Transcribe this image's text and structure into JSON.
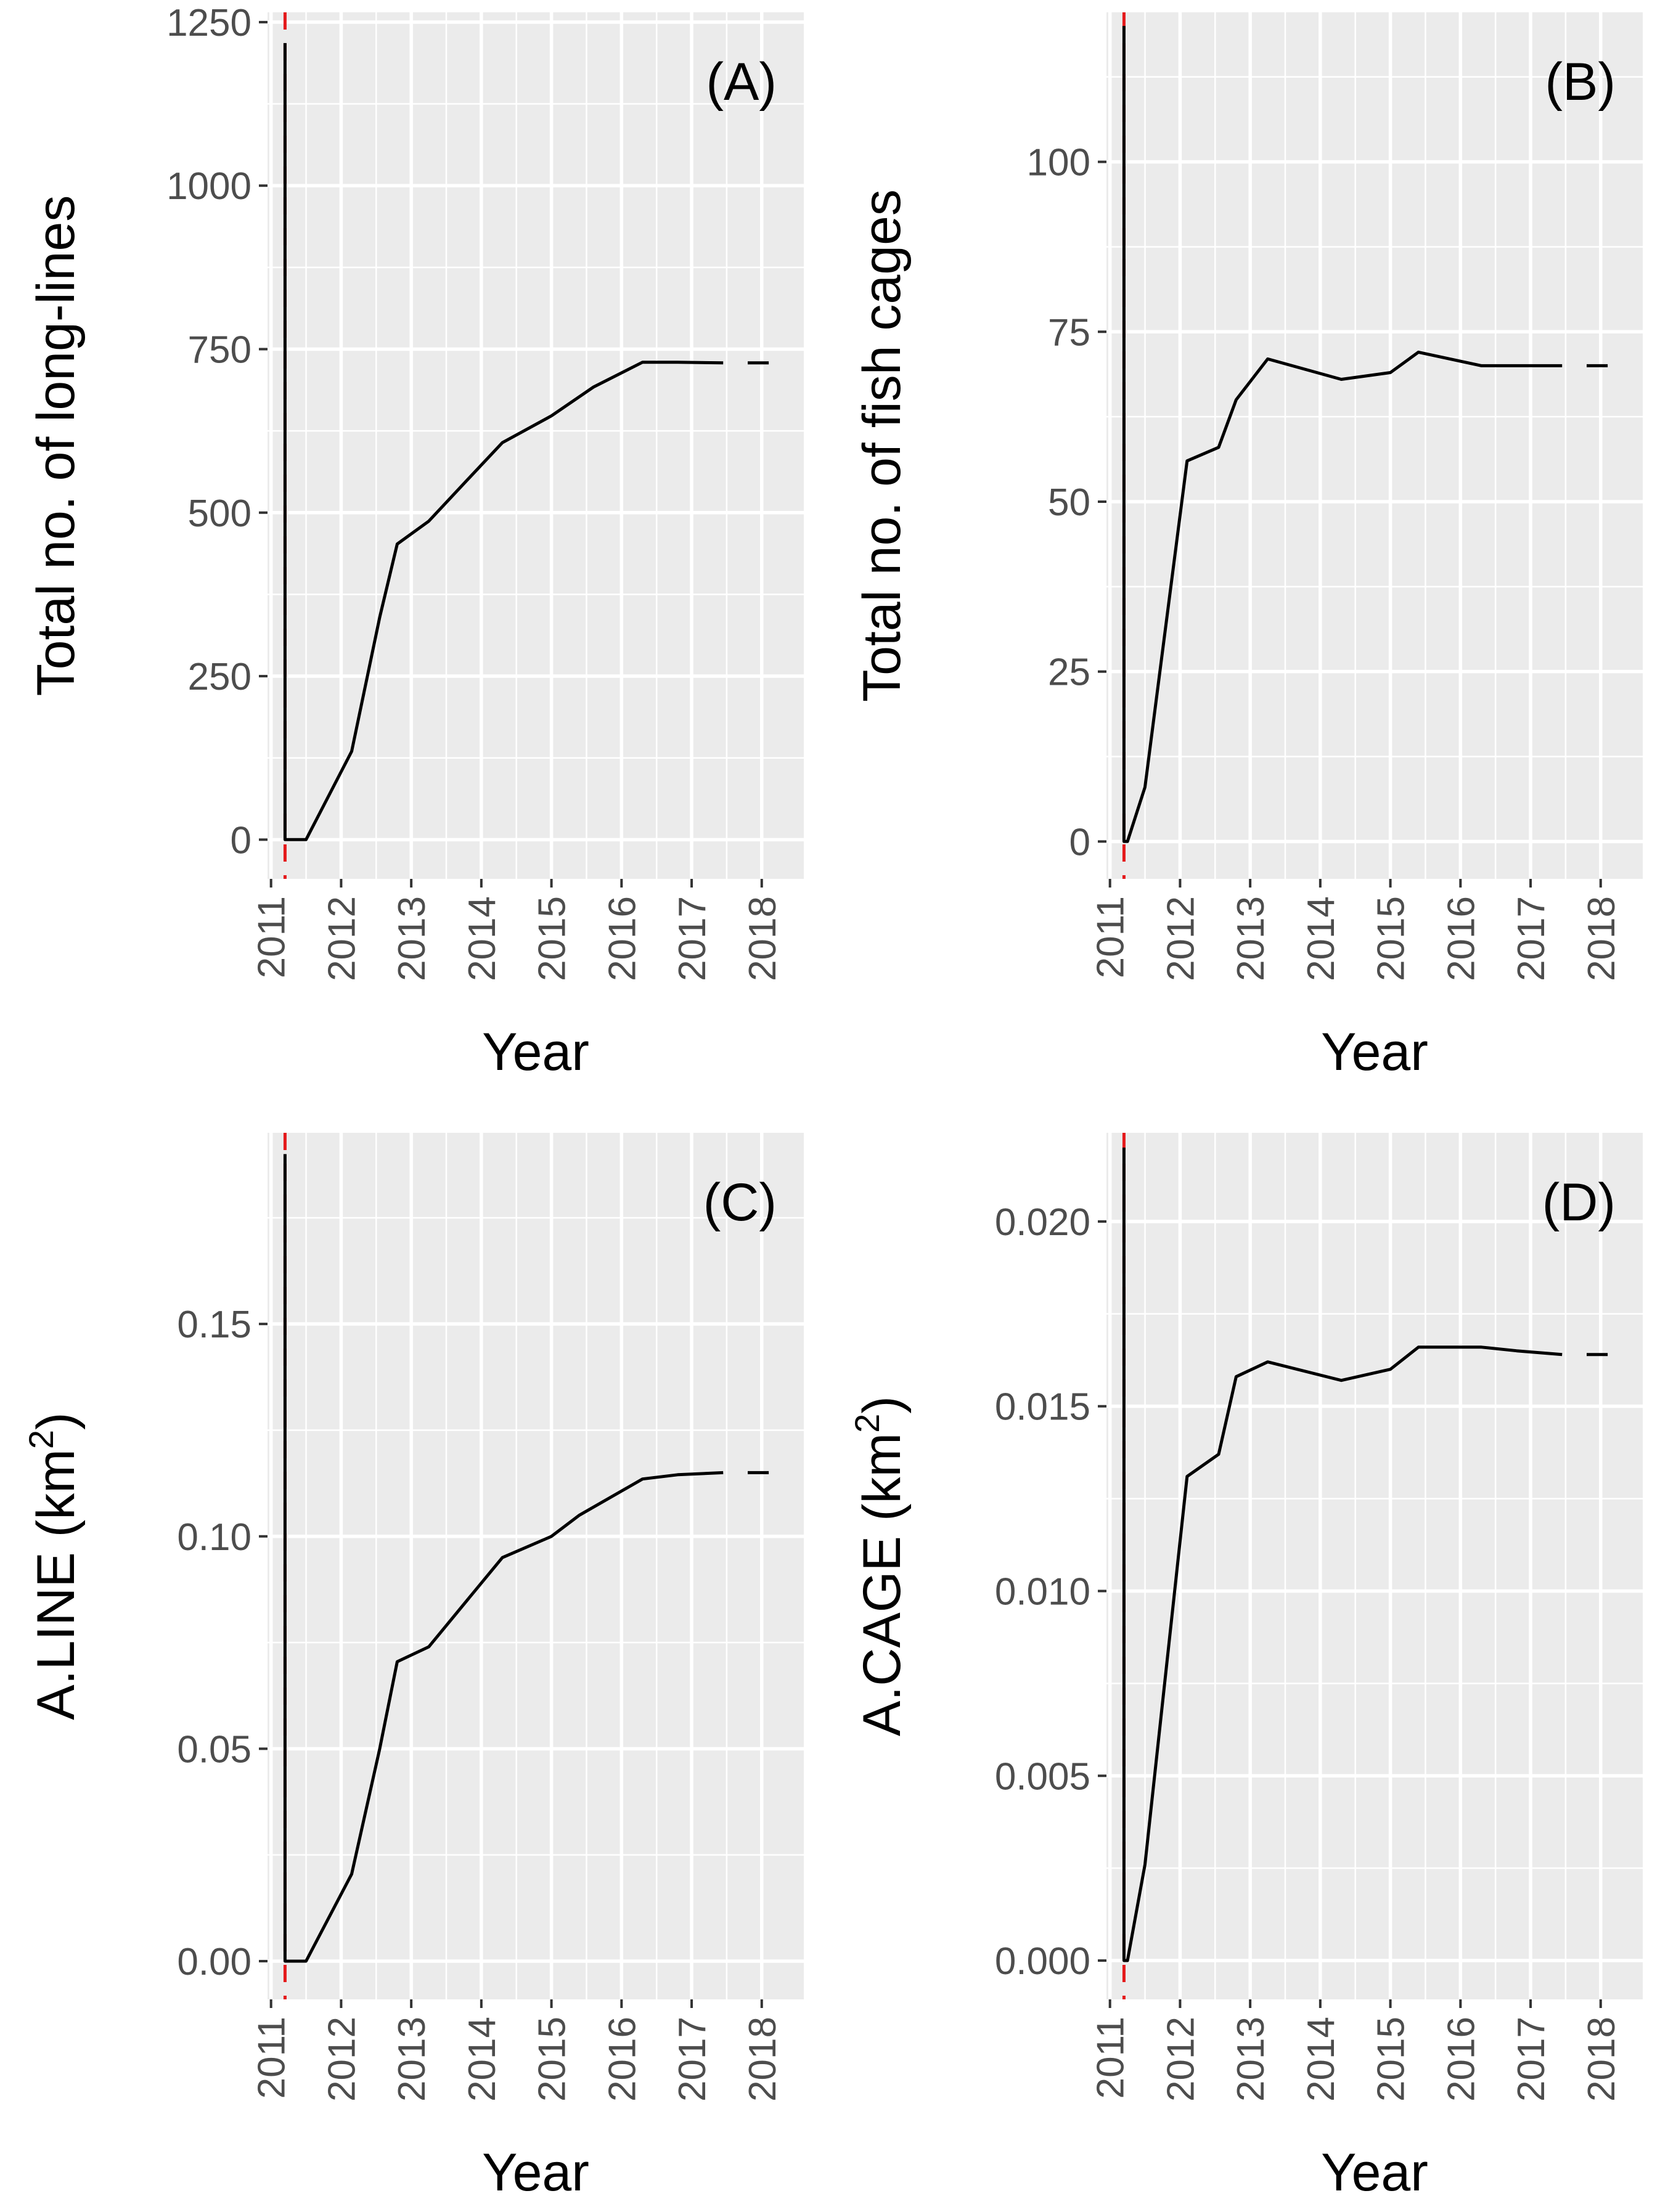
{
  "chart_data": [
    {
      "id": "A",
      "type": "line",
      "panel_label": "(A)",
      "xlabel": "Year",
      "ylabel": "Total no. of long-lines",
      "ylabel_sup": "",
      "xlim": [
        2010.95,
        2018.6
      ],
      "ylim": [
        -60,
        1265
      ],
      "x_ticks": [
        2011,
        2012,
        2013,
        2014,
        2015,
        2016,
        2017,
        2018
      ],
      "x_tick_labels": [
        "2011",
        "2012",
        "2013",
        "2014",
        "2015",
        "2016",
        "2017",
        "2018"
      ],
      "y_ticks": [
        0,
        250,
        500,
        750,
        1000,
        1250
      ],
      "y_tick_labels": [
        "0",
        "250",
        "500",
        "750",
        "1000",
        "1250"
      ],
      "vline_x": 2011.2,
      "x": [
        2011.2,
        2011.2,
        2011.5,
        2012.15,
        2012.55,
        2012.8,
        2013.25,
        2013.8,
        2014.3,
        2015.0,
        2015.6,
        2016.3,
        2016.8,
        2017.45
      ],
      "y": [
        1218,
        0,
        0,
        135,
        340,
        452,
        487,
        550,
        607,
        648,
        692,
        730,
        730,
        729
      ],
      "extension": {
        "x": [
          2017.8,
          2018.1
        ],
        "y": [
          729,
          729
        ]
      }
    },
    {
      "id": "B",
      "type": "line",
      "panel_label": "(B)",
      "xlabel": "Year",
      "ylabel": "Total no. of fish cages",
      "ylabel_sup": "",
      "xlim": [
        2010.95,
        2018.6
      ],
      "ylim": [
        -5.5,
        122
      ],
      "x_ticks": [
        2011,
        2012,
        2013,
        2014,
        2015,
        2016,
        2017,
        2018
      ],
      "x_tick_labels": [
        "2011",
        "2012",
        "2013",
        "2014",
        "2015",
        "2016",
        "2017",
        "2018"
      ],
      "y_ticks": [
        0,
        25,
        50,
        75,
        100
      ],
      "y_tick_labels": [
        "0",
        "25",
        "50",
        "75",
        "100"
      ],
      "vline_x": 2011.2,
      "x": [
        2011.2,
        2011.2,
        2011.25,
        2011.5,
        2012.1,
        2012.55,
        2012.8,
        2013.25,
        2014.3,
        2015.0,
        2015.4,
        2016.3,
        2016.8,
        2017.45
      ],
      "y": [
        120,
        0,
        0,
        8,
        56,
        58,
        65,
        71,
        68,
        69,
        72,
        70,
        70,
        70
      ],
      "extension": {
        "x": [
          2017.8,
          2018.1
        ],
        "y": [
          70,
          70
        ]
      }
    },
    {
      "id": "C",
      "type": "line",
      "panel_label": "(C)",
      "xlabel": "Year",
      "ylabel": "A.LINE  (km",
      "ylabel_sup": "2",
      "ylabel_after": ")",
      "xlim": [
        2010.95,
        2018.6
      ],
      "ylim": [
        -0.009,
        0.195
      ],
      "x_ticks": [
        2011,
        2012,
        2013,
        2014,
        2015,
        2016,
        2017,
        2018
      ],
      "x_tick_labels": [
        "2011",
        "2012",
        "2013",
        "2014",
        "2015",
        "2016",
        "2017",
        "2018"
      ],
      "y_ticks": [
        0.0,
        0.05,
        0.1,
        0.15
      ],
      "y_tick_labels": [
        "0.00",
        "0.05",
        "0.10",
        "0.15"
      ],
      "vline_x": 2011.2,
      "x": [
        2011.2,
        2011.2,
        2011.5,
        2012.15,
        2012.55,
        2012.8,
        2013.25,
        2013.8,
        2014.3,
        2015.0,
        2015.4,
        2016.3,
        2016.8,
        2017.45
      ],
      "y": [
        0.19,
        0.0,
        0.0,
        0.0205,
        0.05,
        0.0705,
        0.074,
        0.085,
        0.095,
        0.1,
        0.105,
        0.1135,
        0.1145,
        0.115
      ],
      "extension": {
        "x": [
          2017.8,
          2018.1
        ],
        "y": [
          0.115,
          0.115
        ]
      }
    },
    {
      "id": "D",
      "type": "line",
      "panel_label": "(D)",
      "xlabel": "Year",
      "ylabel": "A.CAGE  (km",
      "ylabel_sup": "2",
      "ylabel_after": ")",
      "xlim": [
        2010.95,
        2018.6
      ],
      "ylim": [
        -0.00105,
        0.0224
      ],
      "x_ticks": [
        2011,
        2012,
        2013,
        2014,
        2015,
        2016,
        2017,
        2018
      ],
      "x_tick_labels": [
        "2011",
        "2012",
        "2013",
        "2014",
        "2015",
        "2016",
        "2017",
        "2018"
      ],
      "y_ticks": [
        0.0,
        0.005,
        0.01,
        0.015,
        0.02
      ],
      "y_tick_labels": [
        "0.000",
        "0.005",
        "0.010",
        "0.015",
        "0.020"
      ],
      "vline_x": 2011.2,
      "x": [
        2011.2,
        2011.2,
        2011.25,
        2011.5,
        2012.1,
        2012.55,
        2012.8,
        2013.25,
        2014.3,
        2015.0,
        2015.4,
        2016.3,
        2016.8,
        2017.45
      ],
      "y": [
        0.022,
        0.0,
        0.0,
        0.0026,
        0.0131,
        0.0137,
        0.0158,
        0.0162,
        0.0157,
        0.016,
        0.0166,
        0.0166,
        0.0165,
        0.0164
      ],
      "extension": {
        "x": [
          2017.8,
          2018.1
        ],
        "y": [
          0.0164,
          0.0164
        ]
      }
    }
  ]
}
